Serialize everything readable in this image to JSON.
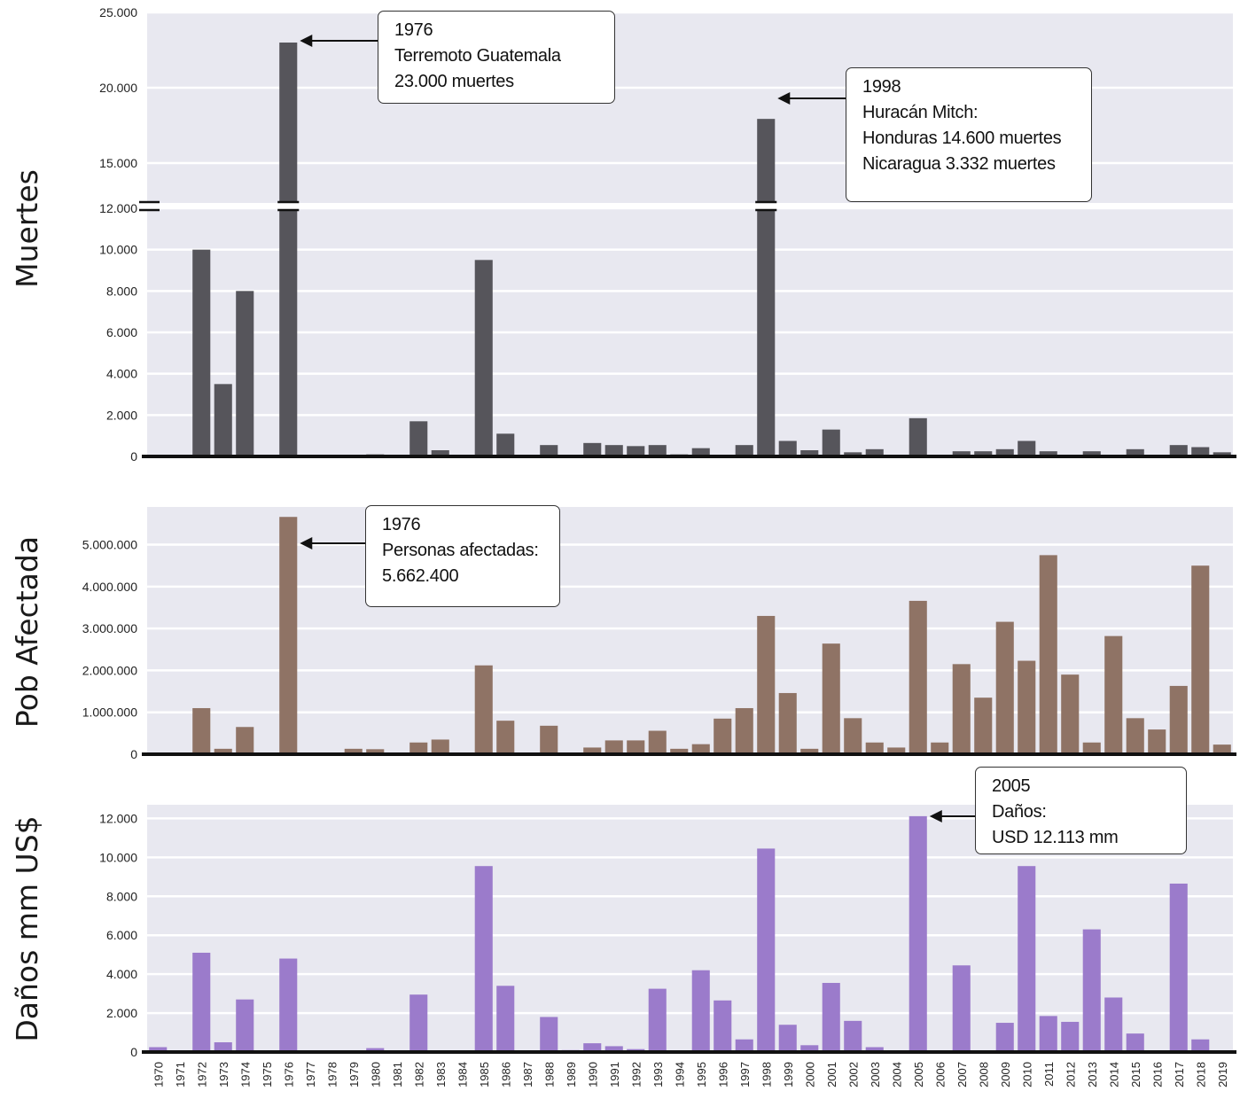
{
  "chart_data": [
    {
      "type": "bar",
      "ylabel": "Muertes",
      "color": "#56555b",
      "broken_axis": true,
      "axis_break_at": 12000,
      "yticks_lower": [
        "0",
        "2.000",
        "4.000",
        "6.000",
        "8.000",
        "10.000",
        "12.000"
      ],
      "yticks_upper": [
        "15.000",
        "20.000",
        "25.000"
      ],
      "categories": [
        "1970",
        "1971",
        "1972",
        "1973",
        "1974",
        "1975",
        "1976",
        "1977",
        "1978",
        "1979",
        "1980",
        "1981",
        "1982",
        "1983",
        "1984",
        "1985",
        "1986",
        "1987",
        "1988",
        "1989",
        "1990",
        "1991",
        "1992",
        "1993",
        "1994",
        "1995",
        "1996",
        "1997",
        "1998",
        "1999",
        "2000",
        "2001",
        "2002",
        "2003",
        "2004",
        "2005",
        "2006",
        "2007",
        "2008",
        "2009",
        "2010",
        "2011",
        "2012",
        "2013",
        "2014",
        "2015",
        "2016",
        "2017",
        "2018",
        "2019"
      ],
      "values": [
        0,
        0,
        10000,
        3500,
        8000,
        0,
        23000,
        0,
        0,
        0,
        100,
        0,
        1700,
        300,
        0,
        9500,
        1100,
        0,
        550,
        0,
        650,
        550,
        500,
        550,
        100,
        400,
        0,
        550,
        17932,
        750,
        300,
        1300,
        200,
        350,
        0,
        1850,
        0,
        250,
        250,
        350,
        750,
        250,
        0,
        250,
        0,
        350,
        0,
        550,
        450,
        200
      ],
      "annotations": [
        {
          "category": "1976",
          "lines": [
            "1976",
            "Terremoto Guatemala",
            "23.000 muertes"
          ]
        },
        {
          "category": "1998",
          "lines": [
            "1998",
            "Huracán Mitch:",
            "Honduras 14.600 muertes",
            "Nicaragua 3.332 muertes"
          ]
        }
      ]
    },
    {
      "type": "bar",
      "ylabel": "Pob Afectada",
      "color": "#8f7365",
      "yticks": [
        "0",
        "1.000.000",
        "2.000.000",
        "3.000.000",
        "4.000.000",
        "5.000.000"
      ],
      "categories": [
        "1970",
        "1971",
        "1972",
        "1973",
        "1974",
        "1975",
        "1976",
        "1977",
        "1978",
        "1979",
        "1980",
        "1981",
        "1982",
        "1983",
        "1984",
        "1985",
        "1986",
        "1987",
        "1988",
        "1989",
        "1990",
        "1991",
        "1992",
        "1993",
        "1994",
        "1995",
        "1996",
        "1997",
        "1998",
        "1999",
        "2000",
        "2001",
        "2002",
        "2003",
        "2004",
        "2005",
        "2006",
        "2007",
        "2008",
        "2009",
        "2010",
        "2011",
        "2012",
        "2013",
        "2014",
        "2015",
        "2016",
        "2017",
        "2018",
        "2019"
      ],
      "values": [
        30000,
        0,
        1100000,
        130000,
        650000,
        0,
        5662400,
        30000,
        0,
        130000,
        120000,
        0,
        280000,
        350000,
        0,
        2120000,
        800000,
        30000,
        680000,
        30000,
        160000,
        330000,
        330000,
        560000,
        130000,
        240000,
        850000,
        1100000,
        3300000,
        1460000,
        130000,
        2640000,
        860000,
        280000,
        160000,
        3660000,
        280000,
        2150000,
        1350000,
        3160000,
        2230000,
        4750000,
        1900000,
        280000,
        2820000,
        860000,
        590000,
        1630000,
        4500000,
        230000
      ],
      "annotations": [
        {
          "category": "1976",
          "lines": [
            "1976",
            "Personas afectadas:",
            "5.662.400"
          ]
        }
      ]
    },
    {
      "type": "bar",
      "ylabel": "Daños mm US$",
      "color": "#9b7bcb",
      "yticks": [
        "0",
        "2.000",
        "4.000",
        "6.000",
        "8.000",
        "10.000",
        "12.000"
      ],
      "categories": [
        "1970",
        "1971",
        "1972",
        "1973",
        "1974",
        "1975",
        "1976",
        "1977",
        "1978",
        "1979",
        "1980",
        "1981",
        "1982",
        "1983",
        "1984",
        "1985",
        "1986",
        "1987",
        "1988",
        "1989",
        "1990",
        "1991",
        "1992",
        "1993",
        "1994",
        "1995",
        "1996",
        "1997",
        "1998",
        "1999",
        "2000",
        "2001",
        "2002",
        "2003",
        "2004",
        "2005",
        "2006",
        "2007",
        "2008",
        "2009",
        "2010",
        "2011",
        "2012",
        "2013",
        "2014",
        "2015",
        "2016",
        "2017",
        "2018",
        "2019"
      ],
      "values": [
        250,
        0,
        5100,
        500,
        2700,
        0,
        4800,
        0,
        0,
        0,
        200,
        0,
        2950,
        0,
        0,
        9550,
        3400,
        0,
        1800,
        100,
        450,
        300,
        150,
        3250,
        0,
        4200,
        2650,
        650,
        10450,
        1400,
        350,
        3550,
        1600,
        250,
        0,
        12113,
        0,
        4450,
        0,
        1500,
        9550,
        1850,
        1550,
        6300,
        2800,
        950,
        0,
        8650,
        650,
        0
      ],
      "annotations": [
        {
          "category": "2005",
          "lines": [
            "2005",
            "Daños:",
            "USD 12.113 mm"
          ]
        }
      ]
    }
  ]
}
